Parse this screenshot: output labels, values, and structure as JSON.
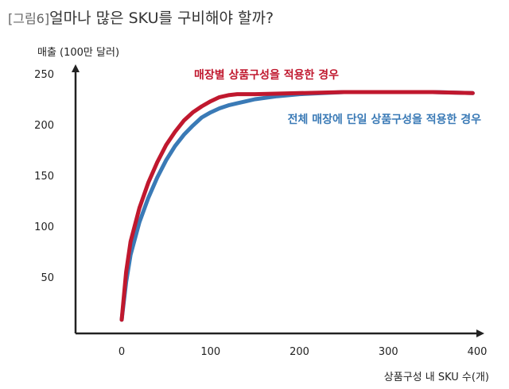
{
  "figure": {
    "tag": "[그림6]",
    "title": "얼마나 많은 SKU를 구비해야 할까?"
  },
  "colors": {
    "red": "#c0182e",
    "blue": "#3a7ab6",
    "axis": "#222222"
  },
  "chart_data": {
    "type": "line",
    "ylabel": "매출 (100만 달러)",
    "xlabel": "상품구성 내 SKU 수(개)",
    "xlim": [
      -50,
      400
    ],
    "ylim": [
      0,
      250
    ],
    "x_ticks": [
      0,
      100,
      200,
      300,
      400
    ],
    "y_ticks": [
      50,
      100,
      150,
      200,
      250
    ],
    "grid": false,
    "series": [
      {
        "name": "매장별 상품구성을 적용한 경우",
        "color": "#c0182e",
        "x": [
          0,
          5,
          10,
          20,
          30,
          40,
          50,
          60,
          70,
          80,
          90,
          100,
          110,
          120,
          130,
          140,
          150,
          200,
          250,
          300,
          350,
          395
        ],
        "y": [
          8,
          55,
          85,
          118,
          143,
          163,
          180,
          193,
          204,
          212,
          218,
          223,
          227,
          229,
          230,
          230,
          230,
          231,
          232,
          232,
          232,
          231
        ]
      },
      {
        "name": "전체 매장에 단일 상품구성을 적용한 경우",
        "color": "#3a7ab6",
        "x": [
          0,
          5,
          10,
          20,
          30,
          40,
          50,
          60,
          70,
          80,
          90,
          100,
          110,
          120,
          130,
          140,
          150,
          175,
          200,
          250,
          300,
          350,
          395
        ],
        "y": [
          8,
          45,
          72,
          104,
          128,
          148,
          165,
          179,
          190,
          199,
          207,
          212,
          216,
          219,
          221,
          223,
          225,
          228,
          230,
          232,
          232,
          232,
          231
        ]
      }
    ]
  }
}
